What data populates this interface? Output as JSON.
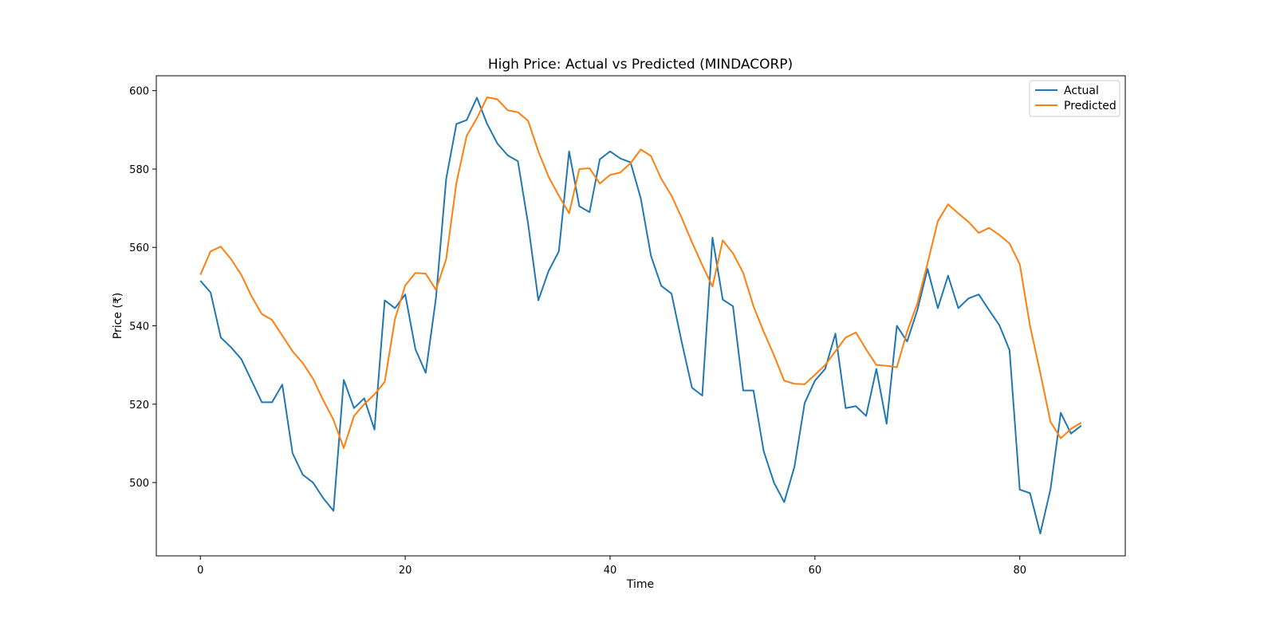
{
  "chart_data": {
    "type": "line",
    "title": "High Price: Actual vs Predicted (MINDACORP)",
    "xlabel": "Time",
    "ylabel": "Price (₹)",
    "xlim": [
      -4.3,
      90.3
    ],
    "ylim": [
      481.3,
      603.8
    ],
    "xticks": [
      0,
      20,
      40,
      60,
      80
    ],
    "yticks": [
      500,
      520,
      540,
      560,
      580,
      600
    ],
    "grid": false,
    "legend_position": "top-right",
    "series": [
      {
        "name": "Actual",
        "color": "#1f77b4",
        "values": [
          551.5,
          548.5,
          537.0,
          534.5,
          531.5,
          526.0,
          520.5,
          520.5,
          525.0,
          507.5,
          502.0,
          500.0,
          496.0,
          492.8,
          526.2,
          519.0,
          521.5,
          513.5,
          546.5,
          544.5,
          548.0,
          534.0,
          528.0,
          547.0,
          577.5,
          591.5,
          592.5,
          598.2,
          591.5,
          586.5,
          583.5,
          582.0,
          566.0,
          546.5,
          554.0,
          559.0,
          584.5,
          570.5,
          569.0,
          582.5,
          584.5,
          582.7,
          581.7,
          572.5,
          557.8,
          550.2,
          548.2,
          535.8,
          524.2,
          522.2,
          562.5,
          546.7,
          545.0,
          523.5,
          523.5,
          508.0,
          500.0,
          495.0,
          504.0,
          520.3,
          526.0,
          529.0,
          538.0,
          519.0,
          519.5,
          517.0,
          529.0,
          515.0,
          540.0,
          536.0,
          544.0,
          554.5,
          544.5,
          552.8,
          544.5,
          547.0,
          548.0,
          544.0,
          540.2,
          533.8,
          498.2,
          497.3,
          487.0,
          498.3,
          517.8,
          512.5,
          514.5
        ]
      },
      {
        "name": "Predicted",
        "color": "#ff7f0e",
        "values": [
          553.0,
          559.0,
          560.2,
          557.0,
          553.0,
          547.5,
          543.0,
          541.5,
          537.5,
          533.5,
          530.5,
          526.5,
          521.0,
          516.0,
          508.8,
          517.0,
          520.0,
          522.5,
          525.7,
          541.7,
          550.3,
          553.5,
          553.3,
          549.2,
          557.0,
          576.5,
          588.5,
          593.0,
          598.3,
          597.8,
          595.0,
          594.5,
          592.3,
          584.5,
          578.0,
          573.2,
          568.7,
          580.0,
          580.2,
          576.3,
          578.5,
          579.1,
          581.5,
          585.0,
          583.3,
          577.5,
          573.2,
          567.5,
          561.3,
          555.5,
          550.0,
          561.8,
          558.5,
          553.5,
          545.0,
          538.5,
          532.5,
          526.0,
          525.2,
          525.1,
          527.5,
          530.0,
          533.5,
          537.0,
          538.3,
          534.0,
          530.0,
          529.8,
          529.4,
          538.5,
          545.7,
          556.0,
          566.7,
          571.0,
          568.7,
          566.5,
          563.7,
          565.0,
          563.2,
          561.0,
          555.7,
          540.0,
          528.0,
          515.5,
          511.3,
          513.7,
          515.3
        ]
      }
    ]
  }
}
